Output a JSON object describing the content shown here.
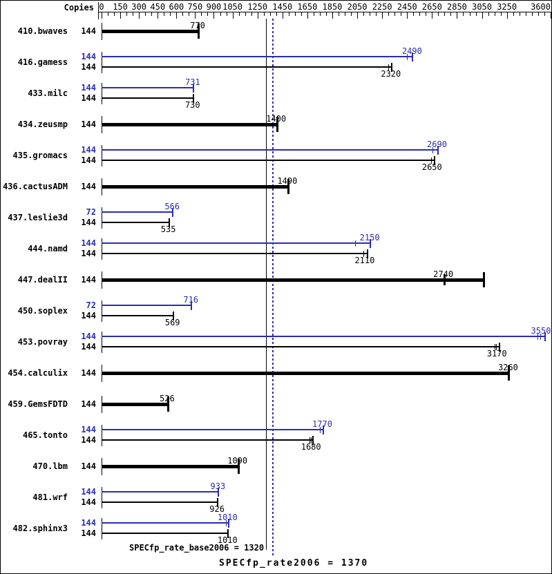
{
  "header": {
    "copies_label": "Copies"
  },
  "colors": {
    "base": "#000000",
    "peak": "#2b2bb4",
    "background": "#ffffff"
  },
  "footer": {
    "base_label": "SPECfp_rate_base2006 = 1320",
    "peak_label": "SPECfp_rate2006 = 1370"
  },
  "chart_data": {
    "type": "bar",
    "orientation": "horizontal",
    "xlim": [
      0,
      3600
    ],
    "axis_minor_step": 50,
    "axis_labeled_ticks": [
      0,
      150,
      300,
      450,
      600,
      750,
      900,
      1050,
      1250,
      1450,
      1650,
      1850,
      2050,
      2250,
      2450,
      2650,
      2850,
      3050,
      3250,
      3600
    ],
    "grid": "off",
    "legend": "none",
    "copies_column_header": "Copies",
    "summary": {
      "base_metric": "SPECfp_rate_base2006",
      "base_value": 1320,
      "peak_metric": "SPECfp_rate2006",
      "peak_value": 1370
    },
    "reference_lines": [
      {
        "value": 1320,
        "style": "solid",
        "series": "base"
      },
      {
        "value": 1370,
        "style": "dotted",
        "series": "peak"
      }
    ],
    "benchmarks": [
      {
        "name": "410.bwaves",
        "bars": [
          {
            "series": "base",
            "copies": 144,
            "value": 770,
            "ticks": [
              770
            ],
            "end": 770
          }
        ]
      },
      {
        "name": "416.gamess",
        "bars": [
          {
            "series": "peak",
            "copies": 144,
            "value": 2490,
            "ticks": [
              2450,
              2490
            ],
            "end": 2490
          },
          {
            "series": "base",
            "copies": 144,
            "value": 2320,
            "ticks": [
              2300,
              2320
            ],
            "end": 2320
          }
        ]
      },
      {
        "name": "433.milc",
        "bars": [
          {
            "series": "peak",
            "copies": 144,
            "value": 731,
            "ticks": [
              731
            ],
            "end": 731
          },
          {
            "series": "base",
            "copies": 144,
            "value": 730,
            "ticks": [
              730
            ],
            "end": 730
          }
        ]
      },
      {
        "name": "434.zeusmp",
        "bars": [
          {
            "series": "base",
            "copies": 144,
            "value": 1400,
            "ticks": [
              1400
            ],
            "end": 1400
          }
        ]
      },
      {
        "name": "435.gromacs",
        "bars": [
          {
            "series": "peak",
            "copies": 144,
            "value": 2690,
            "ticks": [
              2655,
              2690
            ],
            "end": 2690
          },
          {
            "series": "base",
            "copies": 144,
            "value": 2650,
            "ticks": [
              2640,
              2665
            ],
            "end": 2665
          }
        ]
      },
      {
        "name": "436.cactusADM",
        "bars": [
          {
            "series": "base",
            "copies": 144,
            "value": 1490,
            "ticks": [
              1490
            ],
            "end": 1490
          }
        ]
      },
      {
        "name": "437.leslie3d",
        "bars": [
          {
            "series": "peak",
            "copies": 72,
            "value": 566,
            "ticks": [
              566
            ],
            "end": 566
          },
          {
            "series": "base",
            "copies": 144,
            "value": 535,
            "ticks": [
              535
            ],
            "end": 535
          }
        ]
      },
      {
        "name": "444.namd",
        "bars": [
          {
            "series": "peak",
            "copies": 144,
            "value": 2150,
            "ticks": [
              2035,
              2150
            ],
            "end": 2150
          },
          {
            "series": "base",
            "copies": 144,
            "value": 2110,
            "ticks": [
              2100,
              2125
            ],
            "end": 2125
          }
        ]
      },
      {
        "name": "447.dealII",
        "bars": [
          {
            "series": "base",
            "copies": 144,
            "value": 2740,
            "ticks": [
              2740,
              3060
            ],
            "end": 3060
          }
        ]
      },
      {
        "name": "450.soplex",
        "bars": [
          {
            "series": "peak",
            "copies": 72,
            "value": 716,
            "ticks": [
              716
            ],
            "end": 716
          },
          {
            "series": "base",
            "copies": 144,
            "value": 569,
            "ticks": [
              569
            ],
            "end": 569
          }
        ]
      },
      {
        "name": "453.povray",
        "bars": [
          {
            "series": "peak",
            "copies": 144,
            "value": 3550,
            "ticks": [
              3495,
              3520,
              3550
            ],
            "end": 3550
          },
          {
            "series": "base",
            "copies": 144,
            "value": 3170,
            "ticks": [
              3150,
              3165,
              3185
            ],
            "end": 3185
          }
        ]
      },
      {
        "name": "454.calculix",
        "bars": [
          {
            "series": "base",
            "copies": 144,
            "value": 3260,
            "ticks": [
              3260
            ],
            "end": 3260
          }
        ]
      },
      {
        "name": "459.GemsFDTD",
        "bars": [
          {
            "series": "base",
            "copies": 144,
            "value": 526,
            "ticks": [
              526
            ],
            "end": 526
          }
        ]
      },
      {
        "name": "465.tonto",
        "bars": [
          {
            "series": "peak",
            "copies": 144,
            "value": 1770,
            "ticks": [
              1750,
              1775
            ],
            "end": 1775
          },
          {
            "series": "base",
            "copies": 144,
            "value": 1680,
            "ticks": [
              1665,
              1680,
              1692
            ],
            "end": 1692
          }
        ]
      },
      {
        "name": "470.lbm",
        "bars": [
          {
            "series": "base",
            "copies": 144,
            "value": 1090,
            "ticks": [
              1090
            ],
            "end": 1090
          }
        ]
      },
      {
        "name": "481.wrf",
        "bars": [
          {
            "series": "peak",
            "copies": 144,
            "value": 933,
            "ticks": [
              933
            ],
            "end": 933
          },
          {
            "series": "base",
            "copies": 144,
            "value": 926,
            "ticks": [
              926
            ],
            "end": 926
          }
        ]
      },
      {
        "name": "482.sphinx3",
        "bars": [
          {
            "series": "peak",
            "copies": 144,
            "value": 1010,
            "ticks": [
              995,
              1012
            ],
            "end": 1012
          },
          {
            "series": "base",
            "copies": 144,
            "value": 1010,
            "ticks": [
              1010
            ],
            "end": 1010
          }
        ]
      }
    ]
  }
}
